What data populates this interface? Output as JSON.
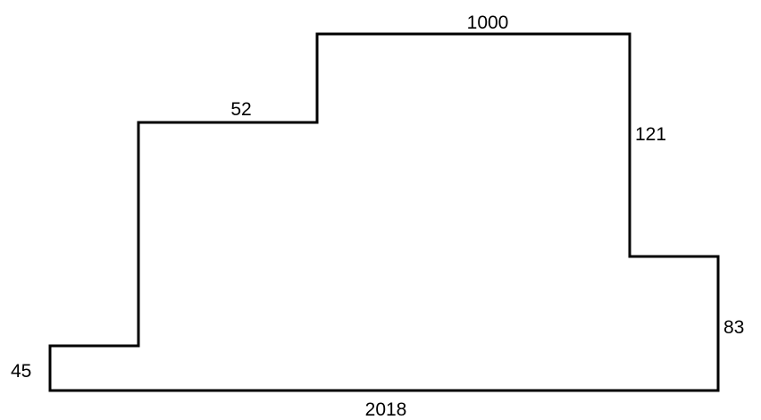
{
  "figure": {
    "stroke_color": "#000000",
    "background_color": "#ffffff"
  },
  "labels": {
    "top": "1000",
    "upper_left_step": "52",
    "right_upper": "121",
    "right_lower": "83",
    "left_lower": "45",
    "bottom": "2018"
  }
}
